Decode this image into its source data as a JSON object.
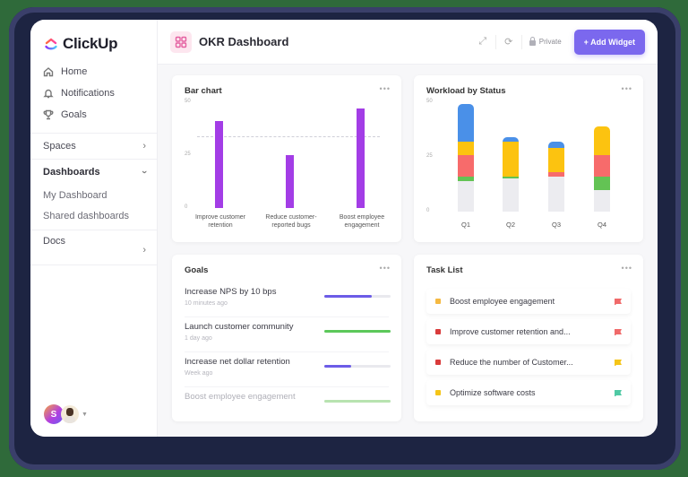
{
  "app": {
    "name": "ClickUp"
  },
  "sidebar": {
    "nav": [
      {
        "label": "Home",
        "icon": "home-icon"
      },
      {
        "label": "Notifications",
        "icon": "bell-icon"
      },
      {
        "label": "Goals",
        "icon": "trophy-icon"
      }
    ],
    "spaces_label": "Spaces",
    "dashboards_label": "Dashboards",
    "dashboards_items": [
      "My Dashboard",
      "Shared dashboards"
    ],
    "docs_label": "Docs",
    "avatar_initial": "S"
  },
  "header": {
    "title": "OKR Dashboard",
    "private_label": "Private",
    "add_widget_label": "+ Add Widget",
    "accent": "#7b68ee"
  },
  "widgets": {
    "bar_chart": {
      "title": "Bar chart",
      "menu": "•••"
    },
    "workload": {
      "title": "Workload by Status",
      "menu": "•••"
    },
    "goals": {
      "title": "Goals",
      "menu": "•••",
      "items": [
        {
          "name": "Increase NPS by 10 bps",
          "time": "10 minutes ago",
          "progress": 72,
          "color": "#6c5ce7"
        },
        {
          "name": "Launch customer community",
          "time": "1 day ago",
          "progress": 100,
          "color": "#5cc85a"
        },
        {
          "name": "Increase net dollar retention",
          "time": "Week ago",
          "progress": 40,
          "color": "#6c5ce7"
        },
        {
          "name": "Boost employee engagement",
          "time": "",
          "progress": 100,
          "color": "#b8e3b0"
        }
      ]
    },
    "tasks": {
      "title": "Task List",
      "menu": "•••",
      "items": [
        {
          "name": "Boost employee engagement",
          "status_color": "#f5b942",
          "flag_color": "#f06a6a"
        },
        {
          "name": "Improve customer retention and...",
          "status_color": "#d93b3b",
          "flag_color": "#f06a6a"
        },
        {
          "name": "Reduce the number of Customer...",
          "status_color": "#d93b3b",
          "flag_color": "#f5c518"
        },
        {
          "name": "Optimize software costs",
          "status_color": "#f5c518",
          "flag_color": "#4fc9a4"
        }
      ]
    }
  },
  "chart_data": [
    {
      "type": "bar",
      "title": "Bar chart",
      "categories": [
        "Improve customer retention",
        "Reduce customer-reported bugs",
        "Boost employee engagement"
      ],
      "values": [
        41,
        25,
        47
      ],
      "reference_line": 34,
      "yticks": [
        "50",
        "25",
        "0"
      ],
      "ylim": [
        0,
        50
      ],
      "color": "#a33de6",
      "xlabel": "",
      "ylabel": ""
    },
    {
      "type": "bar",
      "stacked": true,
      "title": "Workload by Status",
      "categories": [
        "Q1",
        "Q2",
        "Q3",
        "Q4"
      ],
      "yticks": [
        "50",
        "25",
        "0"
      ],
      "ylim": [
        0,
        50
      ],
      "series": [
        {
          "name": "gray",
          "color": "#ececf0",
          "values": [
            14,
            15,
            16,
            10
          ]
        },
        {
          "name": "green",
          "color": "#63c354",
          "values": [
            2,
            1,
            0,
            6
          ]
        },
        {
          "name": "red",
          "color": "#f76b6b",
          "values": [
            10,
            0,
            2,
            10
          ]
        },
        {
          "name": "yellow",
          "color": "#fcc310",
          "values": [
            6,
            16,
            11,
            13
          ]
        },
        {
          "name": "blue",
          "color": "#4a90e8",
          "values": [
            17,
            2,
            3,
            0
          ]
        }
      ]
    }
  ]
}
